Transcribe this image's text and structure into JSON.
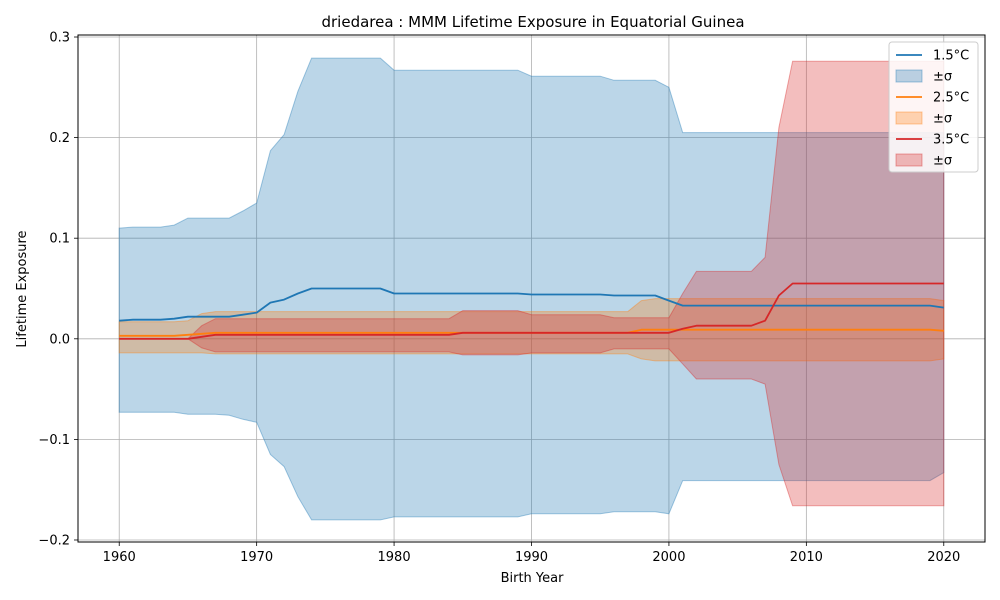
{
  "chart_data": {
    "type": "line",
    "title": "driedarea : MMM Lifetime Exposure in Equatorial Guinea",
    "xlabel": "Birth Year",
    "ylabel": "Lifetime Exposure",
    "xlim": [
      1957,
      2023
    ],
    "ylim": [
      -0.202,
      0.302
    ],
    "x_ticks": [
      1960,
      1970,
      1980,
      1990,
      2000,
      2010,
      2020
    ],
    "y_ticks": [
      -0.2,
      -0.1,
      0.0,
      0.1,
      0.2,
      0.3
    ],
    "y_tick_labels": [
      "−0.2",
      "−0.1",
      "0.0",
      "0.1",
      "0.2",
      "0.3"
    ],
    "grid": true,
    "legend_position": "top-right",
    "x": [
      1960,
      1961,
      1962,
      1963,
      1964,
      1965,
      1966,
      1967,
      1968,
      1969,
      1970,
      1971,
      1972,
      1973,
      1974,
      1975,
      1976,
      1977,
      1978,
      1979,
      1980,
      1981,
      1982,
      1983,
      1984,
      1985,
      1986,
      1987,
      1988,
      1989,
      1990,
      1991,
      1992,
      1993,
      1994,
      1995,
      1996,
      1997,
      1998,
      1999,
      2000,
      2001,
      2002,
      2003,
      2004,
      2005,
      2006,
      2007,
      2008,
      2009,
      2010,
      2011,
      2012,
      2013,
      2014,
      2015,
      2016,
      2017,
      2018,
      2019,
      2020
    ],
    "series": [
      {
        "name": "1.5°C",
        "band_label": "±σ",
        "color": "#1f77b4",
        "mean": [
          0.018,
          0.019,
          0.019,
          0.019,
          0.02,
          0.022,
          0.022,
          0.022,
          0.022,
          0.024,
          0.026,
          0.036,
          0.039,
          0.045,
          0.05,
          0.05,
          0.05,
          0.05,
          0.05,
          0.05,
          0.045,
          0.045,
          0.045,
          0.045,
          0.045,
          0.045,
          0.045,
          0.045,
          0.045,
          0.045,
          0.044,
          0.044,
          0.044,
          0.044,
          0.044,
          0.044,
          0.043,
          0.043,
          0.043,
          0.043,
          0.038,
          0.033,
          0.033,
          0.033,
          0.033,
          0.033,
          0.033,
          0.033,
          0.033,
          0.033,
          0.033,
          0.033,
          0.033,
          0.033,
          0.033,
          0.033,
          0.033,
          0.033,
          0.033,
          0.033,
          0.031
        ],
        "upper": [
          0.11,
          0.111,
          0.111,
          0.111,
          0.113,
          0.12,
          0.12,
          0.12,
          0.12,
          0.127,
          0.135,
          0.187,
          0.203,
          0.246,
          0.279,
          0.279,
          0.279,
          0.279,
          0.279,
          0.279,
          0.267,
          0.267,
          0.267,
          0.267,
          0.267,
          0.267,
          0.267,
          0.267,
          0.267,
          0.267,
          0.261,
          0.261,
          0.261,
          0.261,
          0.261,
          0.261,
          0.257,
          0.257,
          0.257,
          0.257,
          0.25,
          0.205,
          0.205,
          0.205,
          0.205,
          0.205,
          0.205,
          0.205,
          0.205,
          0.205,
          0.205,
          0.205,
          0.205,
          0.205,
          0.205,
          0.205,
          0.205,
          0.205,
          0.205,
          0.205,
          0.205
        ],
        "lower": [
          -0.073,
          -0.073,
          -0.073,
          -0.073,
          -0.073,
          -0.075,
          -0.075,
          -0.075,
          -0.076,
          -0.08,
          -0.083,
          -0.115,
          -0.127,
          -0.157,
          -0.18,
          -0.18,
          -0.18,
          -0.18,
          -0.18,
          -0.18,
          -0.177,
          -0.177,
          -0.177,
          -0.177,
          -0.177,
          -0.177,
          -0.177,
          -0.177,
          -0.177,
          -0.177,
          -0.174,
          -0.174,
          -0.174,
          -0.174,
          -0.174,
          -0.174,
          -0.172,
          -0.172,
          -0.172,
          -0.172,
          -0.174,
          -0.141,
          -0.141,
          -0.141,
          -0.141,
          -0.141,
          -0.141,
          -0.141,
          -0.141,
          -0.141,
          -0.141,
          -0.141,
          -0.141,
          -0.141,
          -0.141,
          -0.141,
          -0.141,
          -0.141,
          -0.141,
          -0.141,
          -0.133
        ]
      },
      {
        "name": "2.5°C",
        "band_label": "±σ",
        "color": "#ff7f0e",
        "mean": [
          0.003,
          0.003,
          0.003,
          0.003,
          0.003,
          0.004,
          0.005,
          0.006,
          0.006,
          0.006,
          0.006,
          0.006,
          0.006,
          0.006,
          0.006,
          0.006,
          0.006,
          0.006,
          0.006,
          0.006,
          0.006,
          0.006,
          0.006,
          0.006,
          0.006,
          0.006,
          0.006,
          0.006,
          0.006,
          0.006,
          0.006,
          0.006,
          0.006,
          0.006,
          0.006,
          0.006,
          0.006,
          0.006,
          0.009,
          0.009,
          0.009,
          0.009,
          0.009,
          0.009,
          0.009,
          0.009,
          0.009,
          0.009,
          0.009,
          0.009,
          0.009,
          0.009,
          0.009,
          0.009,
          0.009,
          0.009,
          0.009,
          0.009,
          0.009,
          0.009,
          0.008
        ],
        "upper": [
          0.017,
          0.017,
          0.017,
          0.017,
          0.017,
          0.018,
          0.025,
          0.027,
          0.027,
          0.027,
          0.027,
          0.027,
          0.027,
          0.027,
          0.027,
          0.027,
          0.027,
          0.027,
          0.027,
          0.027,
          0.027,
          0.027,
          0.027,
          0.027,
          0.027,
          0.027,
          0.027,
          0.027,
          0.027,
          0.027,
          0.027,
          0.027,
          0.027,
          0.027,
          0.027,
          0.027,
          0.027,
          0.027,
          0.038,
          0.04,
          0.04,
          0.04,
          0.04,
          0.04,
          0.04,
          0.04,
          0.04,
          0.04,
          0.04,
          0.04,
          0.04,
          0.04,
          0.04,
          0.04,
          0.04,
          0.04,
          0.04,
          0.04,
          0.04,
          0.04,
          0.038
        ],
        "lower": [
          -0.014,
          -0.014,
          -0.014,
          -0.014,
          -0.014,
          -0.014,
          -0.014,
          -0.015,
          -0.015,
          -0.015,
          -0.015,
          -0.015,
          -0.015,
          -0.015,
          -0.015,
          -0.015,
          -0.015,
          -0.015,
          -0.015,
          -0.015,
          -0.015,
          -0.015,
          -0.015,
          -0.015,
          -0.015,
          -0.015,
          -0.015,
          -0.015,
          -0.015,
          -0.015,
          -0.015,
          -0.015,
          -0.015,
          -0.015,
          -0.015,
          -0.015,
          -0.015,
          -0.015,
          -0.02,
          -0.022,
          -0.022,
          -0.022,
          -0.022,
          -0.022,
          -0.022,
          -0.022,
          -0.022,
          -0.022,
          -0.022,
          -0.022,
          -0.022,
          -0.022,
          -0.022,
          -0.022,
          -0.022,
          -0.022,
          -0.022,
          -0.022,
          -0.022,
          -0.022,
          -0.02
        ]
      },
      {
        "name": "3.5°C",
        "band_label": "±σ",
        "color": "#d62728",
        "mean": [
          0.0,
          0.0,
          0.0,
          0.0,
          0.0,
          0.0,
          0.002,
          0.004,
          0.004,
          0.004,
          0.004,
          0.004,
          0.004,
          0.004,
          0.004,
          0.004,
          0.004,
          0.004,
          0.004,
          0.004,
          0.004,
          0.004,
          0.004,
          0.004,
          0.004,
          0.006,
          0.006,
          0.006,
          0.006,
          0.006,
          0.006,
          0.006,
          0.006,
          0.006,
          0.006,
          0.006,
          0.006,
          0.006,
          0.006,
          0.006,
          0.006,
          0.01,
          0.013,
          0.013,
          0.013,
          0.013,
          0.013,
          0.018,
          0.043,
          0.055,
          0.055,
          0.055,
          0.055,
          0.055,
          0.055,
          0.055,
          0.055,
          0.055,
          0.055,
          0.055,
          0.055
        ],
        "upper": [
          0.0,
          0.0,
          0.0,
          0.0,
          0.0,
          0.0,
          0.013,
          0.02,
          0.02,
          0.02,
          0.02,
          0.02,
          0.02,
          0.02,
          0.02,
          0.02,
          0.02,
          0.02,
          0.02,
          0.02,
          0.02,
          0.02,
          0.02,
          0.02,
          0.02,
          0.028,
          0.028,
          0.028,
          0.028,
          0.028,
          0.024,
          0.024,
          0.024,
          0.024,
          0.024,
          0.024,
          0.021,
          0.021,
          0.021,
          0.021,
          0.021,
          0.045,
          0.067,
          0.067,
          0.067,
          0.067,
          0.067,
          0.081,
          0.21,
          0.276,
          0.276,
          0.276,
          0.276,
          0.276,
          0.276,
          0.276,
          0.276,
          0.276,
          0.276,
          0.276,
          0.276
        ],
        "lower": [
          0.0,
          0.0,
          0.0,
          0.0,
          0.0,
          0.0,
          -0.009,
          -0.013,
          -0.013,
          -0.013,
          -0.013,
          -0.013,
          -0.013,
          -0.013,
          -0.013,
          -0.013,
          -0.013,
          -0.013,
          -0.013,
          -0.013,
          -0.013,
          -0.013,
          -0.013,
          -0.013,
          -0.013,
          -0.016,
          -0.016,
          -0.016,
          -0.016,
          -0.016,
          -0.014,
          -0.014,
          -0.014,
          -0.014,
          -0.014,
          -0.014,
          -0.01,
          -0.01,
          -0.01,
          -0.01,
          -0.01,
          -0.025,
          -0.04,
          -0.04,
          -0.04,
          -0.04,
          -0.04,
          -0.045,
          -0.125,
          -0.166,
          -0.166,
          -0.166,
          -0.166,
          -0.166,
          -0.166,
          -0.166,
          -0.166,
          -0.166,
          -0.166,
          -0.166,
          -0.166
        ]
      }
    ]
  }
}
